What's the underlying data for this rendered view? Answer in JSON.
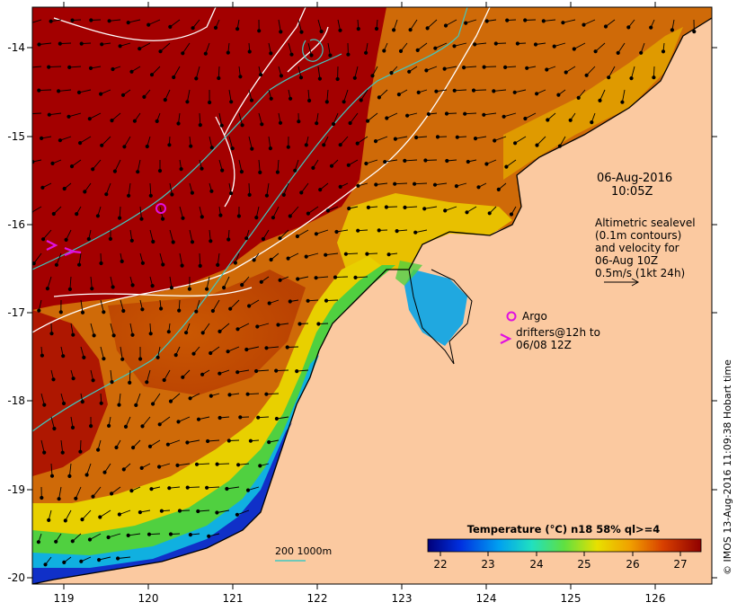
{
  "map": {
    "lon_ticks": [
      "119",
      "120",
      "121",
      "122",
      "123",
      "124",
      "125",
      "126"
    ],
    "lat_ticks": [
      "-14",
      "-15",
      "-16",
      "-17",
      "-18",
      "-19",
      "-20"
    ]
  },
  "annotations": {
    "date": "06-Aug-2016",
    "time": "10:05Z",
    "legend_line1": "Altimetric sealevel",
    "legend_line2": "(0.1m contours)",
    "legend_line3": "and velocity for",
    "legend_line4": "06-Aug 10Z",
    "legend_line5": "0.5m/s (1kt 24h)",
    "argo_label": "Argo",
    "drifters_line1": "drifters@12h to",
    "drifters_line2": "06/08 12Z",
    "credit": "© IMOS 13-Aug-2016 11:09:38 Hobart time"
  },
  "colorbar": {
    "title": "Temperature (°C) n18 58% ql>=4",
    "ticks": [
      "22",
      "23",
      "24",
      "25",
      "26",
      "27"
    ]
  },
  "scalebar": {
    "label": "200  1000m"
  },
  "colors": {
    "land": "#fbc9a0",
    "warm": "#a30000",
    "orange": "#d86a00",
    "yellow": "#e8c000",
    "green": "#4fd04f",
    "cyan": "#00b8e8",
    "blue": "#1030d0",
    "contour": "#ffffff",
    "isobath": "#40c8c0",
    "markers": "#e010e0"
  }
}
